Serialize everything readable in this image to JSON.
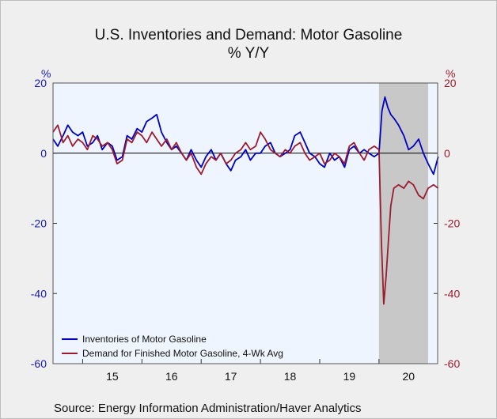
{
  "chart_data": {
    "type": "line",
    "title": "U.S. Inventories and Demand: Motor Gasoline",
    "subtitle": "% Y/Y",
    "ylabel_left": "%",
    "ylabel_right": "%",
    "ylim": [
      -60,
      20
    ],
    "yticks": [
      "20",
      "0",
      "-20",
      "-40",
      "-60"
    ],
    "ytick_values": [
      20,
      0,
      -20,
      -40,
      -60
    ],
    "xlim": [
      2014.5,
      2020.99
    ],
    "xticks": [
      "15",
      "16",
      "17",
      "18",
      "19",
      "20"
    ],
    "xtick_positions": [
      2015.5,
      2016.5,
      2017.5,
      2018.5,
      2019.5,
      2020.5
    ],
    "recession_shade": [
      2020.0,
      2020.83
    ],
    "zero_line": true,
    "legend_placement": "bottom-left",
    "series": [
      {
        "name": "Inventories of Motor Gasoline",
        "color": "#0000c0",
        "x": [
          2014.5,
          2014.58,
          2014.67,
          2014.75,
          2014.83,
          2014.92,
          2015.0,
          2015.08,
          2015.17,
          2015.25,
          2015.33,
          2015.42,
          2015.5,
          2015.58,
          2015.67,
          2015.75,
          2015.83,
          2015.92,
          2016.0,
          2016.08,
          2016.17,
          2016.25,
          2016.33,
          2016.42,
          2016.5,
          2016.58,
          2016.67,
          2016.75,
          2016.83,
          2016.92,
          2017.0,
          2017.08,
          2017.17,
          2017.25,
          2017.33,
          2017.42,
          2017.5,
          2017.58,
          2017.67,
          2017.75,
          2017.83,
          2017.92,
          2018.0,
          2018.08,
          2018.17,
          2018.25,
          2018.33,
          2018.42,
          2018.5,
          2018.58,
          2018.67,
          2018.75,
          2018.83,
          2018.92,
          2019.0,
          2019.08,
          2019.17,
          2019.25,
          2019.33,
          2019.42,
          2019.5,
          2019.58,
          2019.67,
          2019.75,
          2019.83,
          2019.92,
          2020.0,
          2020.05,
          2020.1,
          2020.15,
          2020.2,
          2020.25,
          2020.33,
          2020.42,
          2020.5,
          2020.58,
          2020.67,
          2020.75,
          2020.83,
          2020.92,
          2021.0
        ],
        "values": [
          4,
          2,
          5,
          8,
          6,
          5,
          6,
          2,
          3,
          5,
          1,
          3,
          2,
          -2,
          -1,
          5,
          4,
          7,
          6,
          9,
          10,
          11,
          6,
          3,
          1,
          2,
          0,
          -2,
          1,
          -2,
          -4,
          -1,
          1,
          -2,
          0,
          -3,
          -5,
          -2,
          -1,
          1,
          -2,
          0,
          0,
          2,
          3,
          0,
          -1,
          0,
          1,
          5,
          6,
          3,
          0,
          -1,
          -3,
          -4,
          0,
          -2,
          -1,
          -4,
          1,
          2,
          0,
          1,
          0,
          -1,
          0,
          12,
          16,
          13,
          11,
          10,
          8,
          5,
          1,
          2,
          4,
          0,
          -3,
          -6,
          -1
        ]
      },
      {
        "name": "Demand for Finished Motor Gasoline, 4-Wk Avg",
        "color": "#9b1b30",
        "x": [
          2014.5,
          2014.58,
          2014.67,
          2014.75,
          2014.83,
          2014.92,
          2015.0,
          2015.08,
          2015.17,
          2015.25,
          2015.33,
          2015.42,
          2015.5,
          2015.58,
          2015.67,
          2015.75,
          2015.83,
          2015.92,
          2016.0,
          2016.08,
          2016.17,
          2016.25,
          2016.33,
          2016.42,
          2016.5,
          2016.58,
          2016.67,
          2016.75,
          2016.83,
          2016.92,
          2017.0,
          2017.08,
          2017.17,
          2017.25,
          2017.33,
          2017.42,
          2017.5,
          2017.58,
          2017.67,
          2017.75,
          2017.83,
          2017.92,
          2018.0,
          2018.08,
          2018.17,
          2018.25,
          2018.33,
          2018.42,
          2018.5,
          2018.58,
          2018.67,
          2018.75,
          2018.83,
          2018.92,
          2019.0,
          2019.08,
          2019.17,
          2019.25,
          2019.33,
          2019.42,
          2019.5,
          2019.58,
          2019.67,
          2019.75,
          2019.83,
          2019.92,
          2020.0,
          2020.04,
          2020.08,
          2020.12,
          2020.16,
          2020.2,
          2020.25,
          2020.33,
          2020.42,
          2020.5,
          2020.58,
          2020.67,
          2020.75,
          2020.83,
          2020.92,
          2021.0
        ],
        "values": [
          6,
          8,
          3,
          5,
          2,
          4,
          3,
          1,
          5,
          4,
          2,
          3,
          1,
          -3,
          -2,
          4,
          3,
          6,
          5,
          3,
          6,
          4,
          2,
          4,
          1,
          3,
          0,
          -2,
          0,
          -4,
          -6,
          -3,
          -1,
          -2,
          0,
          -3,
          -2,
          0,
          1,
          3,
          1,
          2,
          6,
          4,
          1,
          0,
          -1,
          1,
          0,
          2,
          3,
          0,
          -2,
          -1,
          0,
          -3,
          -2,
          0,
          -1,
          -3,
          2,
          3,
          0,
          -2,
          1,
          2,
          1,
          -25,
          -43,
          -35,
          -25,
          -15,
          -10,
          -9,
          -10,
          -8,
          -9,
          -12,
          -13,
          -10,
          -9,
          -10
        ]
      }
    ]
  },
  "footer": {
    "source": "Source:  Energy Information Administration/Haver Analytics"
  }
}
